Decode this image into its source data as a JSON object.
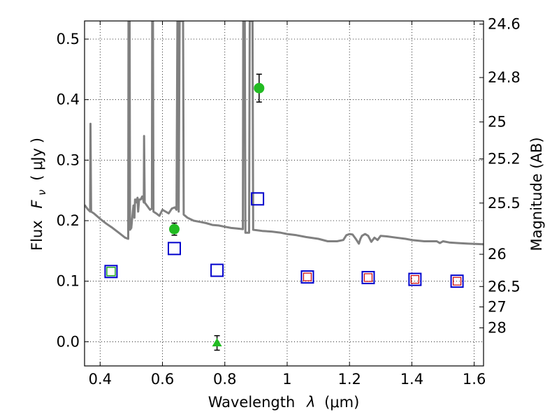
{
  "chart_data": {
    "type": "scatter",
    "xlabel_text": "Wavelength",
    "xlabel_symbol": "λ",
    "xlabel_unit": "(μm)",
    "ylabel_text": "Flux",
    "ylabel_symbol": "F",
    "ylabel_sub": "ν",
    "ylabel_unit": "( μJy )",
    "y2label": "Magnitude (AB)",
    "xlim": [
      0.35,
      1.63
    ],
    "ylim": [
      -0.04,
      0.53
    ],
    "grid": true,
    "x_ticks": [
      0.4,
      0.6,
      0.8,
      1.0,
      1.2,
      1.4,
      1.6
    ],
    "x_tick_labels": [
      "0.4",
      "0.6",
      "0.8",
      "1",
      "1.2",
      "1.4",
      "1.6"
    ],
    "y_ticks": [
      0.0,
      0.1,
      0.2,
      0.3,
      0.4,
      0.5
    ],
    "y_tick_labels": [
      "0.0",
      "0.1",
      "0.2",
      "0.3",
      "0.4",
      "0.5"
    ],
    "y2_ticks": [
      {
        "label": "24.6",
        "flux": 0.5248
      },
      {
        "label": "24.8",
        "flux": 0.4365
      },
      {
        "label": "25",
        "flux": 0.3631
      },
      {
        "label": "25.2",
        "flux": 0.302
      },
      {
        "label": "25.5",
        "flux": 0.2291
      },
      {
        "label": "26",
        "flux": 0.1445
      },
      {
        "label": "26.5",
        "flux": 0.0912
      },
      {
        "label": "27",
        "flux": 0.0575
      },
      {
        "label": "28",
        "flux": 0.0229
      }
    ],
    "sed_color": "#808080",
    "sed_points": [
      [
        0.35,
        0.226
      ],
      [
        0.36,
        0.219
      ],
      [
        0.368,
        0.215
      ],
      [
        0.369,
        0.36
      ],
      [
        0.371,
        0.215
      ],
      [
        0.38,
        0.212
      ],
      [
        0.4,
        0.203
      ],
      [
        0.42,
        0.195
      ],
      [
        0.44,
        0.188
      ],
      [
        0.46,
        0.18
      ],
      [
        0.48,
        0.172
      ],
      [
        0.49,
        0.17
      ],
      [
        0.491,
        0.53
      ],
      [
        0.4945,
        0.53
      ],
      [
        0.496,
        0.185
      ],
      [
        0.5,
        0.188
      ],
      [
        0.505,
        0.215
      ],
      [
        0.507,
        0.225
      ],
      [
        0.51,
        0.205
      ],
      [
        0.512,
        0.235
      ],
      [
        0.515,
        0.235
      ],
      [
        0.518,
        0.23
      ],
      [
        0.52,
        0.238
      ],
      [
        0.522,
        0.215
      ],
      [
        0.525,
        0.235
      ],
      [
        0.53,
        0.235
      ],
      [
        0.535,
        0.24
      ],
      [
        0.538,
        0.235
      ],
      [
        0.54,
        0.23
      ],
      [
        0.541,
        0.34
      ],
      [
        0.543,
        0.23
      ],
      [
        0.55,
        0.225
      ],
      [
        0.56,
        0.218
      ],
      [
        0.566,
        0.22
      ],
      [
        0.567,
        0.53
      ],
      [
        0.5695,
        0.53
      ],
      [
        0.571,
        0.215
      ],
      [
        0.58,
        0.212
      ],
      [
        0.59,
        0.208
      ],
      [
        0.6,
        0.218
      ],
      [
        0.61,
        0.215
      ],
      [
        0.62,
        0.212
      ],
      [
        0.63,
        0.22
      ],
      [
        0.64,
        0.222
      ],
      [
        0.645,
        0.218
      ],
      [
        0.648,
        0.53
      ],
      [
        0.6505,
        0.53
      ],
      [
        0.652,
        0.215
      ],
      [
        0.655,
        0.53
      ],
      [
        0.666,
        0.53
      ],
      [
        0.668,
        0.21
      ],
      [
        0.68,
        0.205
      ],
      [
        0.7,
        0.2
      ],
      [
        0.72,
        0.198
      ],
      [
        0.74,
        0.196
      ],
      [
        0.76,
        0.193
      ],
      [
        0.78,
        0.192
      ],
      [
        0.8,
        0.19
      ],
      [
        0.82,
        0.188
      ],
      [
        0.84,
        0.187
      ],
      [
        0.858,
        0.186
      ],
      [
        0.859,
        0.53
      ],
      [
        0.864,
        0.53
      ],
      [
        0.866,
        0.18
      ],
      [
        0.878,
        0.18
      ],
      [
        0.88,
        0.53
      ],
      [
        0.889,
        0.53
      ],
      [
        0.891,
        0.185
      ],
      [
        0.92,
        0.183
      ],
      [
        0.95,
        0.182
      ],
      [
        0.98,
        0.18
      ],
      [
        1.0,
        0.178
      ],
      [
        1.03,
        0.176
      ],
      [
        1.06,
        0.173
      ],
      [
        1.1,
        0.17
      ],
      [
        1.13,
        0.166
      ],
      [
        1.16,
        0.166
      ],
      [
        1.18,
        0.168
      ],
      [
        1.19,
        0.176
      ],
      [
        1.2,
        0.178
      ],
      [
        1.21,
        0.177
      ],
      [
        1.22,
        0.17
      ],
      [
        1.23,
        0.162
      ],
      [
        1.235,
        0.17
      ],
      [
        1.24,
        0.175
      ],
      [
        1.25,
        0.178
      ],
      [
        1.26,
        0.175
      ],
      [
        1.27,
        0.165
      ],
      [
        1.28,
        0.172
      ],
      [
        1.29,
        0.168
      ],
      [
        1.3,
        0.175
      ],
      [
        1.32,
        0.174
      ],
      [
        1.35,
        0.172
      ],
      [
        1.38,
        0.17
      ],
      [
        1.4,
        0.168
      ],
      [
        1.44,
        0.166
      ],
      [
        1.47,
        0.166
      ],
      [
        1.48,
        0.166
      ],
      [
        1.49,
        0.163
      ],
      [
        1.5,
        0.166
      ],
      [
        1.52,
        0.164
      ],
      [
        1.55,
        0.163
      ],
      [
        1.58,
        0.162
      ],
      [
        1.63,
        0.161
      ]
    ],
    "blue_squares": [
      {
        "x": 0.435,
        "y": 0.116
      },
      {
        "x": 0.638,
        "y": 0.154
      },
      {
        "x": 0.775,
        "y": 0.118
      },
      {
        "x": 0.905,
        "y": 0.236
      },
      {
        "x": 1.065,
        "y": 0.107
      },
      {
        "x": 1.26,
        "y": 0.106
      },
      {
        "x": 1.41,
        "y": 0.103
      },
      {
        "x": 1.545,
        "y": 0.1
      }
    ],
    "blue_color": "#0000cc",
    "green_open_squares": [
      {
        "x": 0.435,
        "y": 0.116
      }
    ],
    "green_open_color": "#22aa22",
    "red_open_squares": [
      {
        "x": 1.065,
        "y": 0.107
      },
      {
        "x": 1.26,
        "y": 0.106
      },
      {
        "x": 1.41,
        "y": 0.103
      },
      {
        "x": 1.545,
        "y": 0.1
      }
    ],
    "red_color": "#cc0000",
    "green_circles": [
      {
        "x": 0.638,
        "y": 0.186,
        "err": 0.01
      },
      {
        "x": 0.91,
        "y": 0.419,
        "err": 0.023
      }
    ],
    "green_triangles": [
      {
        "x": 0.775,
        "y": -0.002,
        "err": 0.012
      }
    ],
    "green_fill": "#22bb22"
  }
}
